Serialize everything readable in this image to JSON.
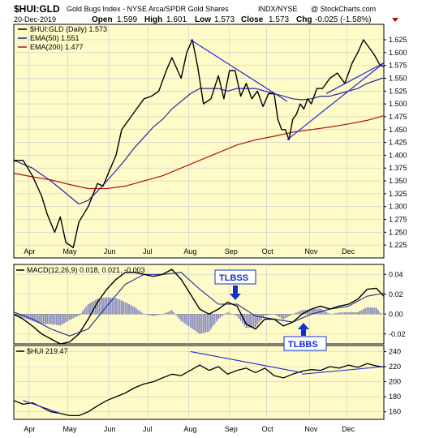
{
  "header": {
    "symbol": "$HUI:GLD",
    "title": "Gold Bugs Index - NYSE Arca/SPDR Gold Shares",
    "exchange": "INDX/NYSE",
    "credit": "@ StockCharts.com",
    "date": "20-Dec-2019",
    "open_label": "Open",
    "open": "1.599",
    "high_label": "High",
    "high": "1.601",
    "low_label": "Low",
    "low": "1.573",
    "close_label": "Close",
    "close": "1.573",
    "chg_label": "Chg",
    "chg": "-0.025 (-1.58%)"
  },
  "legend_main": [
    {
      "label": "$HUI:GLD (Daily) 1.573",
      "color": "#000000"
    },
    {
      "label": "EMA(50) 1.551",
      "color": "#1f2a99"
    },
    {
      "label": "EMA(200) 1.477",
      "color": "#b01010"
    }
  ],
  "legend_macd": {
    "label": "MACD(12,26,9) 0.018, 0.021, -0.003"
  },
  "legend_hui": {
    "label": "$HUI 219.47"
  },
  "annotations": [
    {
      "text": "TLBSS",
      "color": "#1030d0"
    },
    {
      "text": "TLBBS",
      "color": "#1030d0"
    }
  ],
  "colors": {
    "panel_bg": "#fffbc8",
    "price": "#000000",
    "ema50": "#1f2a99",
    "ema200": "#b01010",
    "trendline": "#1f2ad0",
    "histogram": "#8a8fc0",
    "grid": "#c8c8c8"
  },
  "chart_data": [
    {
      "type": "line",
      "title": "$HUI:GLD Gold Bugs Index - NYSE Arca/SPDR Gold Shares",
      "x_tick_labels": [
        "Apr",
        "May",
        "Jun",
        "Jul",
        "Aug",
        "Sep",
        "Oct",
        "Nov",
        "Dec"
      ],
      "yticks": [
        1.225,
        1.25,
        1.275,
        1.3,
        1.325,
        1.35,
        1.375,
        1.4,
        1.425,
        1.45,
        1.475,
        1.5,
        1.525,
        1.55,
        1.575,
        1.6,
        1.625
      ],
      "ylim": [
        1.2,
        1.655
      ],
      "grid": true,
      "legend_position": "top-left",
      "trading_days": 200,
      "month_starts": [
        8,
        29,
        51,
        72,
        94,
        116,
        136,
        159,
        179
      ],
      "series": [
        {
          "name": "$HUI:GLD (Daily)",
          "x": [
            0,
            5,
            10,
            15,
            18,
            22,
            25,
            28,
            32,
            35,
            40,
            45,
            48,
            52,
            55,
            58,
            62,
            66,
            70,
            74,
            78,
            82,
            85,
            90,
            93,
            96,
            99,
            102,
            106,
            110,
            113,
            116,
            119,
            122,
            125,
            128,
            131,
            134,
            137,
            140,
            142,
            144,
            146,
            148,
            150,
            152,
            154,
            156,
            158,
            160,
            163,
            166,
            170,
            174,
            178,
            182,
            185,
            188,
            191,
            194,
            197,
            199
          ],
          "values": [
            1.39,
            1.39,
            1.36,
            1.32,
            1.285,
            1.25,
            1.28,
            1.23,
            1.22,
            1.27,
            1.3,
            1.345,
            1.34,
            1.375,
            1.4,
            1.45,
            1.47,
            1.49,
            1.51,
            1.515,
            1.525,
            1.565,
            1.59,
            1.55,
            1.6,
            1.625,
            1.57,
            1.5,
            1.51,
            1.555,
            1.51,
            1.565,
            1.565,
            1.515,
            1.54,
            1.51,
            1.525,
            1.495,
            1.52,
            1.52,
            1.47,
            1.45,
            1.45,
            1.43,
            1.47,
            1.48,
            1.5,
            1.49,
            1.51,
            1.5,
            1.53,
            1.53,
            1.55,
            1.56,
            1.54,
            1.58,
            1.6,
            1.625,
            1.61,
            1.595,
            1.575,
            1.573
          ]
        },
        {
          "name": "EMA(50)",
          "x": [
            0,
            10,
            20,
            30,
            35,
            40,
            45,
            50,
            55,
            60,
            65,
            70,
            75,
            80,
            85,
            90,
            95,
            100,
            105,
            110,
            115,
            120,
            125,
            130,
            135,
            140,
            145,
            150,
            155,
            160,
            165,
            170,
            175,
            180,
            185,
            190,
            195,
            199
          ],
          "values": [
            1.39,
            1.375,
            1.35,
            1.32,
            1.305,
            1.312,
            1.33,
            1.35,
            1.37,
            1.392,
            1.415,
            1.435,
            1.455,
            1.47,
            1.49,
            1.505,
            1.52,
            1.53,
            1.53,
            1.53,
            1.525,
            1.53,
            1.53,
            1.53,
            1.525,
            1.52,
            1.515,
            1.51,
            1.508,
            1.51,
            1.515,
            1.515,
            1.52,
            1.525,
            1.53,
            1.54,
            1.546,
            1.551
          ]
        },
        {
          "name": "EMA(200)",
          "x": [
            0,
            10,
            20,
            30,
            40,
            50,
            60,
            70,
            80,
            90,
            100,
            110,
            120,
            130,
            140,
            150,
            160,
            170,
            180,
            190,
            199
          ],
          "values": [
            1.365,
            1.358,
            1.352,
            1.343,
            1.335,
            1.335,
            1.34,
            1.35,
            1.36,
            1.375,
            1.39,
            1.405,
            1.42,
            1.43,
            1.437,
            1.445,
            1.45,
            1.455,
            1.461,
            1.468,
            1.477
          ]
        }
      ]
    },
    {
      "type": "line",
      "title": "MACD(12,26,9)",
      "yticks": [
        -0.02,
        0.0,
        0.02,
        0.04
      ],
      "ylim": [
        -0.03,
        0.05
      ],
      "series": [
        {
          "name": "MACD",
          "x": [
            0,
            5,
            10,
            15,
            20,
            25,
            30,
            35,
            40,
            45,
            50,
            55,
            60,
            65,
            70,
            75,
            80,
            85,
            90,
            95,
            100,
            105,
            110,
            115,
            120,
            125,
            130,
            135,
            140,
            145,
            150,
            155,
            160,
            165,
            170,
            175,
            180,
            185,
            190,
            195,
            199
          ],
          "values": [
            0.0,
            -0.005,
            -0.012,
            -0.02,
            -0.025,
            -0.03,
            -0.028,
            -0.02,
            -0.005,
            0.012,
            0.025,
            0.035,
            0.042,
            0.042,
            0.04,
            0.038,
            0.04,
            0.045,
            0.035,
            0.02,
            0.005,
            0.0,
            0.005,
            0.012,
            0.008,
            -0.01,
            -0.015,
            -0.005,
            -0.005,
            -0.012,
            -0.008,
            0.0,
            0.005,
            0.008,
            0.005,
            0.008,
            0.01,
            0.015,
            0.025,
            0.026,
            0.018
          ]
        },
        {
          "name": "Signal",
          "x": [
            0,
            10,
            20,
            30,
            40,
            50,
            60,
            70,
            80,
            90,
            100,
            110,
            120,
            130,
            140,
            150,
            160,
            170,
            180,
            190,
            199
          ],
          "values": [
            0.002,
            -0.005,
            -0.015,
            -0.022,
            -0.015,
            0.008,
            0.03,
            0.04,
            0.04,
            0.042,
            0.025,
            0.01,
            0.01,
            -0.002,
            -0.005,
            -0.008,
            0.0,
            0.005,
            0.008,
            0.018,
            0.021
          ]
        }
      ]
    },
    {
      "type": "line",
      "title": "$HUI",
      "yticks": [
        160,
        180,
        200,
        220,
        240
      ],
      "ylim": [
        150,
        248
      ],
      "series": [
        {
          "name": "$HUI",
          "x": [
            0,
            5,
            10,
            15,
            20,
            25,
            30,
            35,
            40,
            45,
            50,
            55,
            60,
            65,
            70,
            75,
            80,
            85,
            90,
            95,
            100,
            105,
            110,
            115,
            120,
            125,
            130,
            135,
            140,
            145,
            150,
            155,
            160,
            165,
            170,
            175,
            180,
            185,
            190,
            195,
            199
          ],
          "values": [
            175,
            170,
            172,
            166,
            160,
            158,
            155,
            155,
            160,
            168,
            175,
            180,
            185,
            192,
            197,
            200,
            205,
            210,
            208,
            215,
            222,
            215,
            220,
            210,
            215,
            218,
            212,
            218,
            208,
            205,
            210,
            214,
            216,
            215,
            220,
            218,
            222,
            219,
            224,
            221,
            219.47
          ]
        }
      ]
    }
  ]
}
